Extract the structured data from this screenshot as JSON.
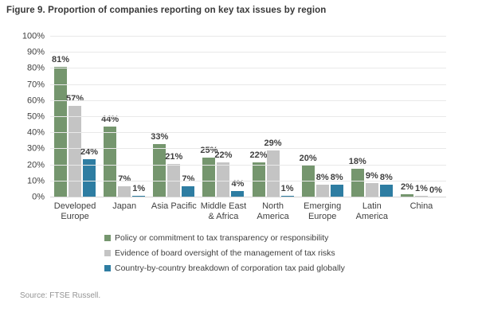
{
  "source": "Source: FTSE Russell.",
  "chart_data": {
    "type": "bar",
    "title": "Figure 9. Proportion of companies reporting on key tax issues by region",
    "categories": [
      "Developed\nEurope",
      "Japan",
      "Asia Pacific",
      "Middle East\n& Africa",
      "North\nAmerica",
      "Emerging\nEurope",
      "Latin\nAmerica",
      "China"
    ],
    "series": [
      {
        "name": "Policy or commitment to tax transparency or responsibility",
        "color": "#75966e",
        "values": [
          81,
          44,
          33,
          25,
          22,
          20,
          18,
          2
        ]
      },
      {
        "name": "Evidence of board oversight of the management of tax risks",
        "color": "#c4c4c4",
        "values": [
          57,
          7,
          21,
          22,
          29,
          8,
          9,
          1
        ]
      },
      {
        "name": "Country-by-country breakdown of corporation tax paid globally",
        "color": "#2e7da2",
        "values": [
          24,
          1,
          7,
          4,
          1,
          8,
          8,
          0
        ]
      }
    ],
    "xlabel": "",
    "ylabel": "",
    "ylim": [
      0,
      100
    ],
    "ytick_step": 10,
    "yticks": [
      "0%",
      "10%",
      "20%",
      "30%",
      "40%",
      "50%",
      "60%",
      "70%",
      "80%",
      "90%",
      "100%"
    ],
    "value_label_suffix": "%",
    "grid": true,
    "legend_position": "bottom"
  }
}
